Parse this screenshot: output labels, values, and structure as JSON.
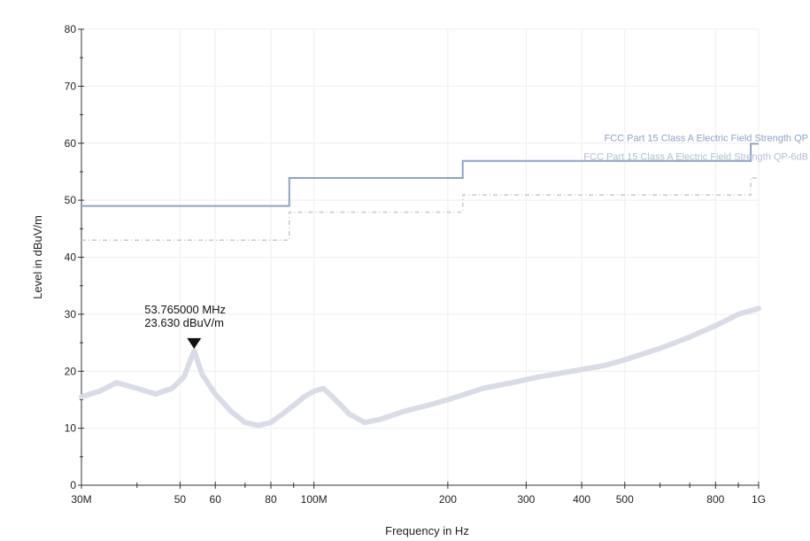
{
  "chart_data": {
    "type": "line",
    "xlabel": "Frequency in Hz",
    "ylabel": "Level in dBuV/m",
    "x_scale": "log",
    "xlim_hz": [
      30000000,
      1000000000
    ],
    "ylim": [
      0,
      80
    ],
    "y_ticks": [
      0,
      10,
      20,
      30,
      40,
      50,
      60,
      70,
      80
    ],
    "y_tick_labels": [
      "0",
      "10",
      "20",
      "30",
      "40",
      "50",
      "60",
      "70",
      "80"
    ],
    "x_ticks_hz": [
      30000000,
      50000000,
      60000000,
      80000000,
      100000000,
      200000000,
      300000000,
      400000000,
      500000000,
      800000000,
      1000000000
    ],
    "x_tick_labels": [
      "30M",
      "50",
      "60",
      "80",
      "100M",
      "200",
      "300",
      "400",
      "500",
      "800",
      "1G"
    ],
    "x_minor_ticks_hz": [
      40000000,
      70000000,
      90000000,
      600000000,
      700000000,
      900000000
    ],
    "grid": true,
    "colors": {
      "limit_qp": "#8ea3c4",
      "limit_qp_6db": "#c9c9c9",
      "measurement": "#d9dce6",
      "axis": "#333333",
      "grid": "#eeeeee"
    },
    "series": [
      {
        "name": "FCC Part 15 Class A  Electric Field Strength QP",
        "style": "solid",
        "x_hz": [
          30000000,
          88000000,
          88000000,
          216000000,
          216000000,
          960000000,
          960000000,
          1000000000
        ],
        "values": [
          49,
          49,
          53.9,
          53.9,
          56.9,
          56.9,
          59.9,
          59.9
        ]
      },
      {
        "name": "FCC Part 15 Class A  Electric Field Strength QP-6dB",
        "style": "dashed",
        "x_hz": [
          30000000,
          88000000,
          88000000,
          216000000,
          216000000,
          960000000,
          960000000,
          1000000000
        ],
        "values": [
          43,
          43,
          47.9,
          47.9,
          50.9,
          50.9,
          53.9,
          53.9
        ]
      },
      {
        "name": "",
        "style": "noisy",
        "x_hz": [
          30000000,
          33000000,
          36000000,
          40000000,
          44000000,
          48000000,
          51000000,
          53765000,
          56000000,
          60000000,
          65000000,
          70000000,
          75000000,
          80000000,
          85000000,
          90000000,
          95000000,
          100000000,
          105000000,
          110000000,
          115000000,
          120000000,
          130000000,
          140000000,
          160000000,
          180000000,
          200000000,
          240000000,
          280000000,
          320000000,
          380000000,
          450000000,
          500000000,
          600000000,
          700000000,
          800000000,
          900000000,
          1000000000
        ],
        "values": [
          15.5,
          16.5,
          18,
          17,
          16,
          17,
          19,
          23.6,
          19.5,
          16,
          13,
          11,
          10.5,
          11,
          12.5,
          14,
          15.5,
          16.5,
          17,
          15.5,
          14,
          12.5,
          11,
          11.5,
          13,
          14,
          15,
          17,
          18,
          19,
          20,
          21,
          22,
          24,
          26,
          28,
          30,
          31
        ]
      }
    ],
    "annotations": [
      {
        "x_hz": 53765000,
        "y": 23.63,
        "lines": [
          "53.765000 MHz",
          "23.630 dBuV/m"
        ],
        "marker": "down-triangle"
      }
    ]
  }
}
